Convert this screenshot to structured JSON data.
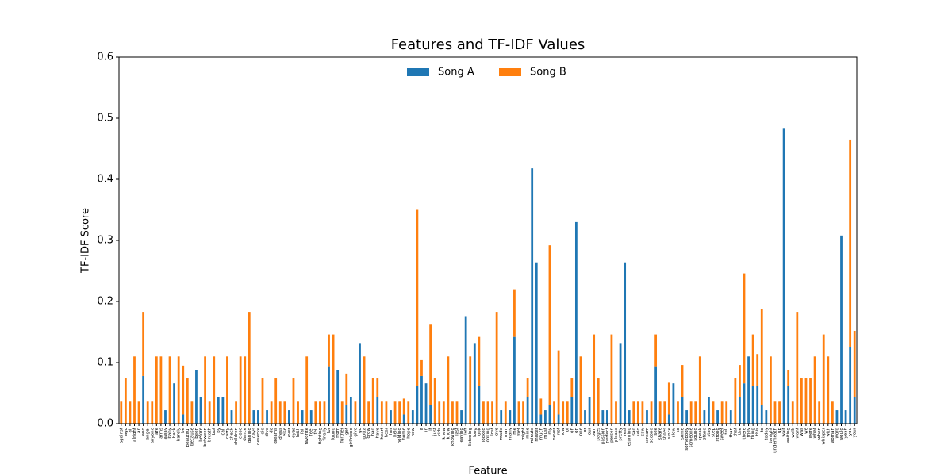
{
  "chart_data": {
    "type": "stacked_bar",
    "title": "Features and TF-IDF Values",
    "xlabel": "Feature",
    "ylabel": "TF-IDF Score",
    "categories": [
      "against",
      "ago",
      "all",
      "alright",
      "an",
      "and",
      "angel",
      "anyone",
      "are",
      "arms",
      "away",
      "baby",
      "back",
      "barely",
      "be",
      "beautiful",
      "because",
      "been",
      "before",
      "between",
      "breath",
      "but",
      "by",
      "call",
      "carry",
      "check",
      "children",
      "close",
      "dance",
      "darling",
      "days",
      "deserve",
      "did",
      "dive",
      "do",
      "dreams",
      "dress",
      "else",
      "ever",
      "eyes",
      "faith",
      "fall",
      "favorite",
      "feel",
      "fell",
      "fighting",
      "finally",
      "for",
      "found",
      "from",
      "further",
      "get",
      "girlfriend",
      "give",
      "go",
      "gotta",
      "grow",
      "had",
      "have",
      "heart",
      "hear",
      "her",
      "held",
      "holding",
      "home",
      "hope",
      "how",
      "i",
      "if",
      "in",
      "it",
      "just",
      "kids",
      "knew",
      "know",
      "knowing",
      "last",
      "leaving",
      "left",
      "listening",
      "long",
      "look",
      "looked",
      "looking",
      "lost",
      "love",
      "made",
      "man",
      "many",
      "me",
      "met",
      "might",
      "mine",
      "minute",
      "mister",
      "much",
      "must",
      "my",
      "never",
      "not",
      "now",
      "of",
      "oh",
      "on",
      "one",
      "or",
      "our",
      "own",
      "pages",
      "passion",
      "perfect",
      "person",
      "please",
      "pretty",
      "rest",
      "returning",
      "sad",
      "said",
      "saw",
      "scream",
      "second",
      "see",
      "share",
      "shoes",
      "since",
      "slow",
      "so",
      "some",
      "somebody",
      "someone",
      "sound",
      "speak",
      "stand",
      "stay",
      "step",
      "strong",
      "sweet",
      "tell",
      "than",
      "that",
      "the",
      "there",
      "they",
      "thing",
      "this",
      "to",
      "today",
      "tonight",
      "underneath",
      "up",
      "wait",
      "waiting",
      "walk",
      "want",
      "was",
      "we",
      "were",
      "what",
      "when",
      "whisper",
      "with",
      "woman",
      "word",
      "would",
      "yeah",
      "you",
      "your"
    ],
    "series": [
      {
        "name": "Song A",
        "color": "#1f77b4",
        "values": [
          0,
          0,
          0,
          0,
          0,
          0.078,
          0,
          0,
          0,
          0,
          0.022,
          0,
          0.066,
          0,
          0.015,
          0,
          0,
          0.088,
          0.044,
          0,
          0,
          0,
          0.044,
          0.044,
          0,
          0.022,
          0,
          0,
          0,
          0,
          0.022,
          0.022,
          0,
          0.022,
          0,
          0,
          0,
          0,
          0.022,
          0,
          0,
          0.022,
          0,
          0.022,
          0,
          0,
          0,
          0.094,
          0,
          0.088,
          0,
          0.03,
          0.044,
          0,
          0.132,
          0,
          0,
          0,
          0.044,
          0,
          0,
          0.022,
          0,
          0,
          0.015,
          0,
          0.022,
          0.062,
          0.078,
          0.066,
          0.03,
          0,
          0,
          0,
          0,
          0,
          0,
          0.022,
          0.176,
          0,
          0.132,
          0.062,
          0,
          0,
          0,
          0,
          0.022,
          0,
          0.022,
          0.142,
          0,
          0,
          0.044,
          0.418,
          0.264,
          0.015,
          0.022,
          0.03,
          0,
          0.015,
          0,
          0,
          0.044,
          0.33,
          0,
          0.022,
          0.044,
          0,
          0,
          0.022,
          0.022,
          0,
          0,
          0.132,
          0.264,
          0.022,
          0,
          0,
          0,
          0.022,
          0,
          0.094,
          0,
          0,
          0.015,
          0.066,
          0,
          0.044,
          0.022,
          0,
          0,
          0,
          0.022,
          0.044,
          0,
          0.022,
          0,
          0,
          0.022,
          0,
          0.044,
          0.066,
          0.11,
          0.062,
          0.062,
          0.03,
          0.022,
          0,
          0,
          0,
          0.484,
          0.062,
          0,
          0,
          0,
          0,
          0,
          0,
          0,
          0,
          0,
          0,
          0.022,
          0.308,
          0.022,
          0.125,
          0.044
        ]
      },
      {
        "name": "Song B",
        "color": "#ff7f0e",
        "values": [
          0.036,
          0.074,
          0.036,
          0.11,
          0.036,
          0.105,
          0.036,
          0.036,
          0.11,
          0.11,
          0,
          0.11,
          0,
          0.11,
          0.08,
          0.074,
          0.036,
          0,
          0,
          0.11,
          0.036,
          0.11,
          0,
          0,
          0.11,
          0,
          0.036,
          0.11,
          0.11,
          0.183,
          0,
          0,
          0.074,
          0,
          0.036,
          0.074,
          0.036,
          0.036,
          0,
          0.074,
          0.036,
          0,
          0.11,
          0,
          0.036,
          0.036,
          0.036,
          0.052,
          0.146,
          0,
          0.036,
          0.052,
          0,
          0.036,
          0,
          0.11,
          0.036,
          0.074,
          0.03,
          0.036,
          0.036,
          0,
          0.036,
          0.036,
          0.026,
          0.036,
          0,
          0.288,
          0.026,
          0,
          0.132,
          0.074,
          0.036,
          0.036,
          0.11,
          0.036,
          0.036,
          0,
          0,
          0.11,
          0,
          0.08,
          0.036,
          0.036,
          0.036,
          0.183,
          0,
          0.036,
          0,
          0.078,
          0.036,
          0.036,
          0.03,
          0,
          0,
          0.026,
          0,
          0.262,
          0.036,
          0.105,
          0.036,
          0.036,
          0.03,
          0,
          0.11,
          0,
          0,
          0.146,
          0.074,
          0,
          0,
          0.146,
          0.036,
          0,
          0,
          0,
          0.036,
          0.036,
          0.036,
          0,
          0.036,
          0.052,
          0.036,
          0.036,
          0.052,
          0,
          0.036,
          0.052,
          0,
          0.036,
          0.036,
          0.11,
          0,
          0,
          0.036,
          0,
          0.036,
          0.036,
          0,
          0.074,
          0.052,
          0.18,
          0,
          0.084,
          0.052,
          0.158,
          0,
          0.11,
          0.036,
          0.036,
          0,
          0.026,
          0.036,
          0.183,
          0.074,
          0.074,
          0.074,
          0.11,
          0.036,
          0.146,
          0.11,
          0.036,
          0,
          0,
          0,
          0.34,
          0.108
        ]
      }
    ],
    "ylim": [
      0,
      0.6
    ],
    "yticks": [
      {
        "value": 0,
        "label": "0.0"
      },
      0.1,
      0.2,
      0.3,
      0.4,
      0.5,
      0.6
    ],
    "legend": "upper center"
  }
}
